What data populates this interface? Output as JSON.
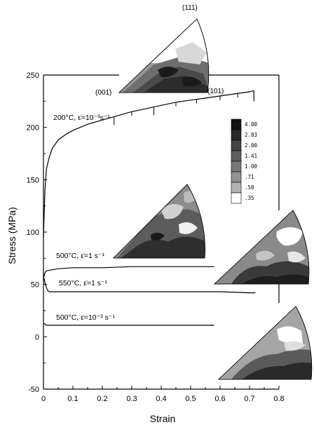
{
  "chart_data": {
    "type": "line",
    "title": "",
    "xlabel": "Strain",
    "ylabel": "Stress (MPa)",
    "xlim": [
      0,
      0.8
    ],
    "ylim": [
      -50,
      250
    ],
    "x_ticks": [
      "0",
      "0.1",
      "0.2",
      "0.3",
      "0.4",
      "0.5",
      "0.6",
      "0.7",
      "0.8"
    ],
    "y_ticks": [
      "-50",
      "0",
      "50",
      "100",
      "150",
      "200",
      "250"
    ],
    "grid": false,
    "series": [
      {
        "label": "200°C, ε̇=10⁻³s⁻¹",
        "points": [
          [
            0,
            95
          ],
          [
            0.005,
            140
          ],
          [
            0.01,
            160
          ],
          [
            0.02,
            172
          ],
          [
            0.03,
            180
          ],
          [
            0.05,
            188
          ],
          [
            0.08,
            194
          ],
          [
            0.1,
            197
          ],
          [
            0.15,
            203
          ],
          [
            0.2,
            207
          ],
          [
            0.25,
            211
          ],
          [
            0.3,
            215
          ],
          [
            0.35,
            218
          ],
          [
            0.4,
            221
          ],
          [
            0.45,
            224
          ],
          [
            0.5,
            226
          ],
          [
            0.55,
            228
          ],
          [
            0.6,
            230
          ],
          [
            0.65,
            232
          ],
          [
            0.7,
            234
          ],
          [
            0.715,
            235
          ]
        ]
      },
      {
        "label": "500°C, ε̇=1 s⁻¹",
        "points": [
          [
            0,
            56
          ],
          [
            0.005,
            61
          ],
          [
            0.01,
            63
          ],
          [
            0.03,
            64
          ],
          [
            0.05,
            65
          ],
          [
            0.1,
            66
          ],
          [
            0.2,
            66
          ],
          [
            0.3,
            67
          ],
          [
            0.4,
            67
          ],
          [
            0.5,
            67
          ],
          [
            0.58,
            67
          ]
        ]
      },
      {
        "label": "550°C, ε̇=1 s⁻¹",
        "points": [
          [
            0,
            58
          ],
          [
            0.005,
            52
          ],
          [
            0.01,
            47
          ],
          [
            0.015,
            44
          ],
          [
            0.02,
            43
          ],
          [
            0.05,
            43
          ],
          [
            0.1,
            43
          ],
          [
            0.2,
            43
          ],
          [
            0.3,
            43
          ],
          [
            0.4,
            43
          ],
          [
            0.5,
            43
          ],
          [
            0.6,
            43
          ],
          [
            0.7,
            42
          ],
          [
            0.72,
            42
          ]
        ]
      },
      {
        "label": "500°C, ε̇=10⁻³ s⁻¹",
        "points": [
          [
            0,
            13
          ],
          [
            0.005,
            12
          ],
          [
            0.01,
            11
          ],
          [
            0.1,
            11
          ],
          [
            0.2,
            11
          ],
          [
            0.3,
            11
          ],
          [
            0.4,
            11
          ],
          [
            0.5,
            11
          ],
          [
            0.55,
            11
          ],
          [
            0.58,
            11
          ]
        ]
      }
    ],
    "annotations": {
      "line1": "200°C, ε̇=10⁻³s⁻¹",
      "line2": "500°C, ε̇=1 s⁻¹",
      "line3": "550°C, ε̇=1 s⁻¹",
      "line4": "500°C, ε̇=10⁻³ s⁻¹"
    },
    "pole_labels": [
      "(111)",
      "(001)",
      "(101)"
    ],
    "contour_legend": [
      "4.00",
      "2.83",
      "2.00",
      "1.41",
      "1.00",
      ".71",
      ".50",
      ".35"
    ],
    "legend_colors": [
      "#111111",
      "#2a2a2a",
      "#444444",
      "#5e5e5e",
      "#787878",
      "#939393",
      "#b3b3b3",
      "#ffffff"
    ]
  }
}
